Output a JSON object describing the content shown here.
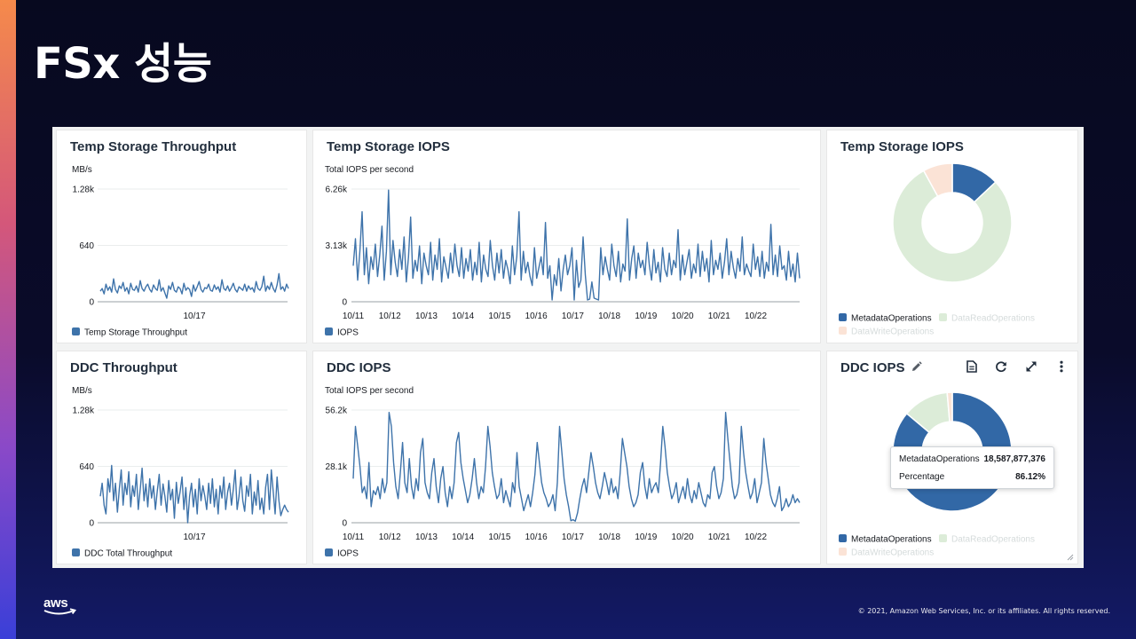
{
  "slide": {
    "title": "FSx 성능",
    "copyright": "© 2021, Amazon Web Services, Inc. or its affiliates. All rights reserved."
  },
  "colors": {
    "series": "#3e73aa",
    "metadata": "#3268a6",
    "dataread": "#dcecd8",
    "datawrite": "#fbe3d6",
    "legend_faded": "#d5dbdb"
  },
  "toolbar": {
    "edit_icon": "pencil-icon",
    "icons": [
      "document-icon",
      "refresh-icon",
      "fullscreen-icon",
      "more-vertical-icon"
    ]
  },
  "tooltip": {
    "label1": "MetadataOperations",
    "value1": "18,587,877,376",
    "label2": "Percentage",
    "value2": "86.12%"
  },
  "chart_data": [
    {
      "id": "temp-throughput",
      "type": "line",
      "title": "Temp Storage Throughput",
      "ylabel": "MB/s",
      "ylim": [
        0,
        1280
      ],
      "yticks": [
        "1.28k",
        "640",
        "0"
      ],
      "ytick_values": [
        1280,
        640,
        0
      ],
      "x_range": [
        0,
        100
      ],
      "xticks": [
        "10/17"
      ],
      "xtick_positions": [
        50
      ],
      "series": [
        {
          "name": "Temp Storage Throughput",
          "values": [
            120,
            150,
            90,
            200,
            130,
            170,
            110,
            260,
            140,
            100,
            180,
            150,
            220,
            120,
            160,
            90,
            210,
            140,
            130,
            180,
            110,
            240,
            150,
            120,
            170,
            200,
            140,
            110,
            190,
            150,
            130,
            250,
            120,
            160,
            100,
            40,
            180,
            140,
            220,
            130,
            110,
            170,
            150,
            90,
            210,
            130,
            160,
            140,
            60,
            190,
            120,
            170,
            230,
            140,
            110,
            160,
            150,
            200,
            130,
            120,
            190,
            140,
            170,
            110,
            250,
            150,
            130,
            180,
            120,
            160,
            210,
            140,
            110,
            170,
            150,
            130,
            200,
            120,
            180,
            140,
            160,
            110,
            230,
            150,
            130,
            170,
            290,
            120,
            180,
            140,
            220,
            150,
            110,
            190,
            320,
            140,
            170,
            120,
            200,
            150
          ]
        }
      ],
      "legend": "Temp Storage Throughput"
    },
    {
      "id": "temp-iops",
      "type": "line",
      "title": "Temp Storage IOPS",
      "ylabel": "Total IOPS per second",
      "ylim": [
        0,
        6260
      ],
      "yticks": [
        "6.26k",
        "3.13k",
        "0"
      ],
      "ytick_values": [
        6260,
        3130,
        0
      ],
      "x_range": [
        0,
        12.2
      ],
      "xticks": [
        "10/11",
        "10/12",
        "10/13",
        "10/14",
        "10/15",
        "10/16",
        "10/17",
        "10/18",
        "10/19",
        "10/20",
        "10/21",
        "10/22"
      ],
      "xtick_positions": [
        0,
        1,
        2,
        3,
        4,
        5,
        6,
        7,
        8,
        9,
        10,
        11
      ],
      "series": [
        {
          "name": "IOPS",
          "values": [
            2000,
            3500,
            1200,
            2800,
            5000,
            1500,
            3000,
            1000,
            2500,
            1800,
            3200,
            1400,
            2600,
            4200,
            1200,
            2800,
            6200,
            1500,
            3400,
            2200,
            1400,
            2900,
            1800,
            3600,
            1100,
            2500,
            4700,
            1300,
            2300,
            1700,
            3100,
            1000,
            2700,
            2000,
            1500,
            3300,
            1200,
            2600,
            1800,
            3500,
            1100,
            2500,
            1900,
            1300,
            2700,
            1600,
            3200,
            2000,
            1400,
            3000,
            1300,
            2400,
            1700,
            2900,
            1200,
            2200,
            1500,
            3300,
            1100,
            2600,
            1800,
            1400,
            3400,
            2000,
            1200,
            2700,
            1600,
            2900,
            1300,
            2300,
            1800,
            1000,
            3100,
            1500,
            2500,
            5000,
            1200,
            2800,
            1600,
            2200,
            1400,
            900,
            3000,
            1300,
            1900,
            2500,
            1500,
            4400,
            1300,
            2000,
            100,
            1500,
            900,
            2400,
            600,
            1800,
            2600,
            1500,
            2000,
            3000,
            100,
            2300,
            800,
            1200,
            3600,
            1500,
            100,
            150,
            1100,
            200,
            150,
            100,
            3000,
            1500,
            2500,
            1800,
            1200,
            3200,
            2000,
            1400,
            2800,
            1100,
            2100,
            1700,
            4600,
            1200,
            2400,
            3100,
            1300,
            2700,
            1900,
            2300,
            1500,
            3300,
            2000,
            1200,
            2900,
            1600,
            2200,
            1100,
            3000,
            1800,
            1400,
            2700,
            1500,
            2300,
            1900,
            4000,
            1200,
            2600,
            1500,
            2200,
            2900,
            1300,
            2100,
            1600,
            3200,
            1400,
            2800,
            1700,
            2400,
            1100,
            3400,
            1500,
            2300,
            1800,
            2700,
            1300,
            2200,
            3500,
            1500,
            2800,
            1900,
            1300,
            2400,
            1700,
            3600,
            1500,
            2100,
            1700,
            1400,
            3200,
            1800,
            2500,
            1400,
            2800,
            1300,
            2200,
            1700,
            4300,
            1500,
            2600,
            1400,
            3100,
            1800,
            2000,
            1200,
            2800,
            1400,
            2100,
            1100,
            2700,
            1300
          ]
        }
      ],
      "legend": "IOPS"
    },
    {
      "id": "temp-iops-donut",
      "type": "pie",
      "title": "Temp Storage IOPS",
      "labels": [
        "MetadataOperations",
        "DataReadOperations",
        "DataWriteOperations"
      ],
      "values": [
        13,
        79,
        8
      ],
      "legend": [
        "MetadataOperations",
        "DataReadOperations",
        "DataWriteOperations"
      ]
    },
    {
      "id": "ddc-throughput",
      "type": "line",
      "title": "DDC Throughput",
      "ylabel": "MB/s",
      "ylim": [
        0,
        1280
      ],
      "yticks": [
        "1.28k",
        "640",
        "0"
      ],
      "ytick_values": [
        1280,
        640,
        0
      ],
      "x_range": [
        0,
        100
      ],
      "xticks": [
        "10/17"
      ],
      "xtick_positions": [
        50
      ],
      "series": [
        {
          "name": "DDC Total Throughput",
          "values": [
            300,
            450,
            200,
            100,
            500,
            350,
            650,
            250,
            450,
            120,
            380,
            600,
            200,
            450,
            320,
            580,
            180,
            420,
            300,
            550,
            150,
            380,
            620,
            250,
            440,
            180,
            500,
            280,
            420,
            150,
            360,
            550,
            200,
            440,
            300,
            120,
            480,
            260,
            380,
            50,
            460,
            220,
            350,
            520,
            150,
            400,
            0,
            300,
            450,
            180,
            380,
            100,
            500,
            250,
            420,
            300,
            150,
            450,
            220,
            500,
            180,
            380,
            100,
            420,
            280,
            520,
            150,
            350,
            450,
            200,
            380,
            600,
            150,
            300,
            520,
            250,
            130,
            420,
            300,
            550,
            100,
            350,
            200,
            480,
            150,
            280,
            100,
            400,
            550,
            150,
            600,
            350,
            100,
            520,
            250,
            80,
            150,
            200,
            150,
            120
          ]
        }
      ],
      "legend": "DDC Total Throughput"
    },
    {
      "id": "ddc-iops",
      "type": "line",
      "title": "DDC IOPS",
      "ylabel": "Total IOPS per second",
      "ylim": [
        0,
        56200
      ],
      "yticks": [
        "56.2k",
        "28.1k",
        "0"
      ],
      "ytick_values": [
        56200,
        28100,
        0
      ],
      "x_range": [
        0,
        12.2
      ],
      "xticks": [
        "10/11",
        "10/12",
        "10/13",
        "10/14",
        "10/15",
        "10/16",
        "10/17",
        "10/18",
        "10/19",
        "10/20",
        "10/21",
        "10/22"
      ],
      "xtick_positions": [
        0,
        1,
        2,
        3,
        4,
        5,
        6,
        7,
        8,
        9,
        10,
        11
      ],
      "series": [
        {
          "name": "IOPS",
          "values": [
            22000,
            48000,
            38000,
            28000,
            15000,
            18000,
            12000,
            30000,
            8000,
            16000,
            14000,
            18000,
            12000,
            22000,
            15000,
            20000,
            55000,
            48000,
            30000,
            18000,
            12000,
            25000,
            40000,
            20000,
            15000,
            32000,
            18000,
            12000,
            22000,
            16000,
            35000,
            42000,
            20000,
            15000,
            12000,
            25000,
            32000,
            18000,
            10000,
            22000,
            28000,
            15000,
            8000,
            18000,
            12000,
            20000,
            40000,
            45000,
            30000,
            22000,
            16000,
            10000,
            14000,
            22000,
            32000,
            20000,
            12000,
            18000,
            15000,
            28000,
            48000,
            38000,
            25000,
            18000,
            12000,
            14000,
            22000,
            10000,
            16000,
            12000,
            8000,
            20000,
            15000,
            35000,
            18000,
            12000,
            6000,
            10000,
            14000,
            8000,
            15000,
            24000,
            40000,
            30000,
            20000,
            15000,
            12000,
            8000,
            10000,
            14000,
            6000,
            20000,
            48000,
            35000,
            22000,
            14000,
            8000,
            1000,
            1500,
            800,
            5000,
            12000,
            18000,
            22000,
            15000,
            25000,
            35000,
            28000,
            20000,
            15000,
            12000,
            18000,
            25000,
            20000,
            14000,
            22000,
            15000,
            18000,
            12000,
            25000,
            42000,
            35000,
            28000,
            18000,
            12000,
            8000,
            10000,
            14000,
            25000,
            30000,
            18000,
            12000,
            22000,
            15000,
            18000,
            20000,
            15000,
            30000,
            48000,
            38000,
            25000,
            18000,
            12000,
            15000,
            20000,
            10000,
            14000,
            18000,
            12000,
            22000,
            14000,
            10000,
            16000,
            12000,
            20000,
            15000,
            10000,
            8000,
            14000,
            12000,
            25000,
            28000,
            18000,
            12000,
            15000,
            22000,
            55000,
            42000,
            30000,
            18000,
            12000,
            14000,
            20000,
            48000,
            35000,
            25000,
            18000,
            12000,
            15000,
            22000,
            10000,
            15000,
            20000,
            42000,
            30000,
            22000,
            14000,
            10000,
            8000,
            12000,
            18000,
            6000,
            8000,
            12000,
            8000,
            10000,
            14000,
            10000,
            12000,
            10000
          ]
        }
      ],
      "legend": "IOPS"
    },
    {
      "id": "ddc-iops-donut",
      "type": "pie",
      "title": "DDC IOPS",
      "labels": [
        "MetadataOperations",
        "DataReadOperations",
        "DataWriteOperations"
      ],
      "values": [
        86.12,
        12.5,
        1.38
      ],
      "legend": [
        "MetadataOperations",
        "DataReadOperations",
        "DataWriteOperations"
      ]
    }
  ]
}
